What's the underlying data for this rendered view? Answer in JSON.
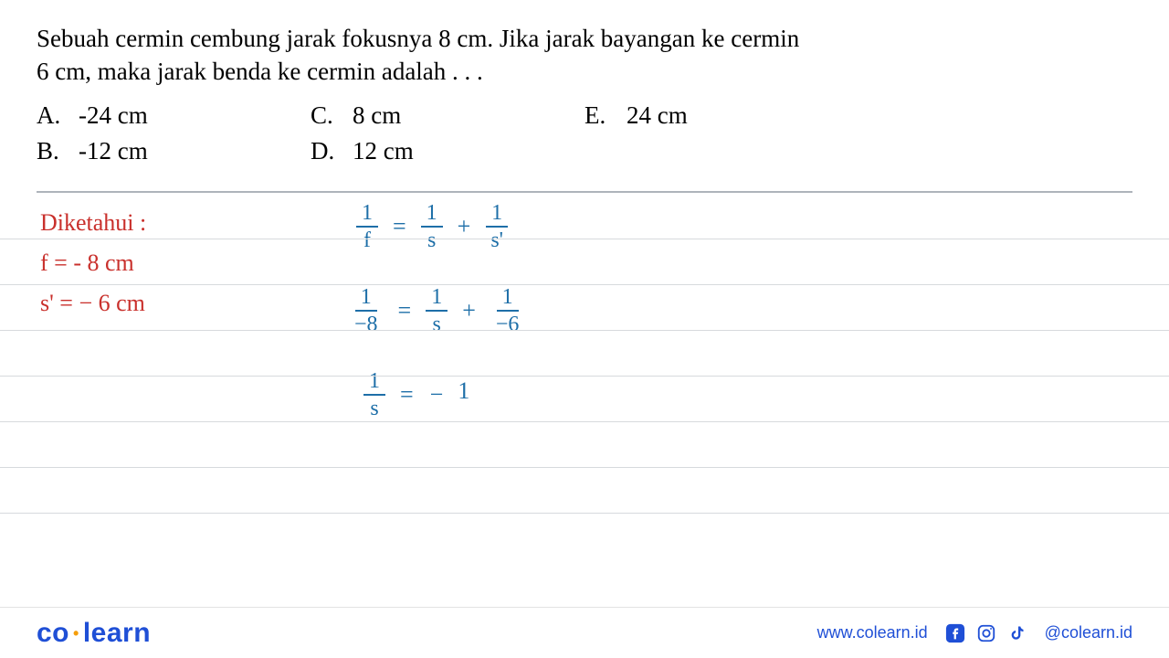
{
  "question": {
    "line1": "Sebuah cermin cembung jarak fokusnya 8 cm. Jika jarak bayangan ke cermin",
    "line2": "6 cm, maka jarak benda ke cermin adalah . . .",
    "options": {
      "A": {
        "letter": "A.",
        "text": "-24 cm"
      },
      "B": {
        "letter": "B.",
        "text": "-12 cm"
      },
      "C": {
        "letter": "C.",
        "text": "8 cm"
      },
      "D": {
        "letter": "D.",
        "text": "12 cm"
      },
      "E": {
        "letter": "E.",
        "text": "24 cm"
      }
    }
  },
  "handwork": {
    "known_title": "Diketahui :",
    "known_f": "f = - 8 cm",
    "known_s": "s' = − 6 cm",
    "frac_1": {
      "num": "1",
      "den": "f"
    },
    "frac_2": {
      "num": "1",
      "den": "s"
    },
    "frac_3": {
      "num": "1",
      "den": "s'"
    },
    "eq": "=",
    "plus": "+",
    "frac_4": {
      "num": "1",
      "den": "−8"
    },
    "frac_5": {
      "num": "1",
      "den": "s"
    },
    "frac_6": {
      "num": "1",
      "den": "−6"
    },
    "frac_7": {
      "num": "1",
      "den": "s"
    },
    "rhs3_pre": "−",
    "rhs3_num": "1"
  },
  "ruled_lines_y": [
    290,
    340,
    390,
    440,
    490,
    540,
    590
  ],
  "footer": {
    "logo_co": "co",
    "logo_learn": "learn",
    "website": "www.colearn.id",
    "handle": "@colearn.id"
  },
  "colors": {
    "red": "#c9302c",
    "blue": "#1e6fa8",
    "brand": "#1f4fd6",
    "rule": "#d7dadd",
    "divider": "#aeb4bb"
  }
}
